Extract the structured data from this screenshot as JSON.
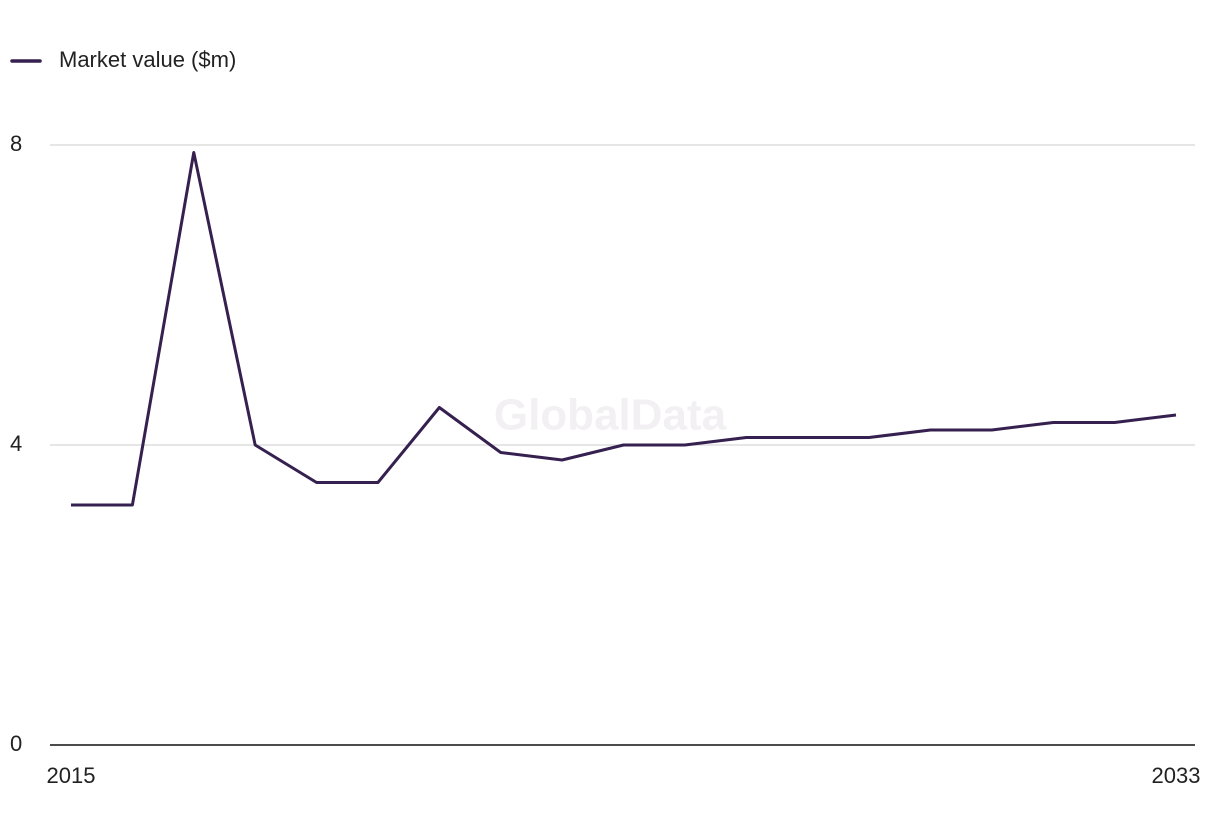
{
  "chart_data": {
    "type": "line",
    "watermark": "GlobalData",
    "x": [
      2015,
      2016,
      2017,
      2018,
      2019,
      2020,
      2021,
      2022,
      2023,
      2024,
      2025,
      2026,
      2027,
      2028,
      2029,
      2030,
      2031,
      2032,
      2033
    ],
    "series": [
      {
        "name": "Market value ($m)",
        "color": "#35204f",
        "values": [
          3.2,
          3.2,
          7.9,
          4.0,
          3.5,
          3.5,
          4.5,
          3.9,
          3.8,
          4.0,
          4.0,
          4.1,
          4.1,
          4.1,
          4.2,
          4.2,
          4.3,
          4.3,
          4.4
        ]
      }
    ],
    "xlim": [
      2015,
      2033
    ],
    "xticks": [
      2015,
      2033
    ],
    "ylim": [
      0,
      8
    ],
    "yticks": [
      0,
      4,
      8
    ],
    "grid": true,
    "legend": "top-left"
  }
}
